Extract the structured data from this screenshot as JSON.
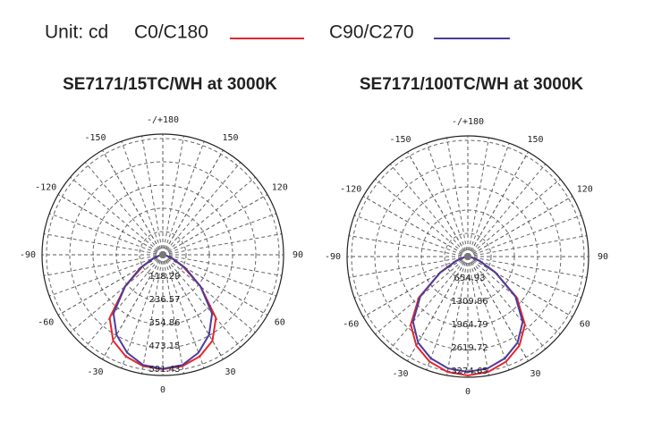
{
  "header": {
    "unit": "Unit: cd",
    "legend": [
      {
        "name": "C0/C180",
        "color": "#e3262f"
      },
      {
        "name": "C90/C270",
        "color": "#4b3c9c"
      }
    ]
  },
  "chart_data": [
    {
      "type": "polar",
      "title": "SE7171/15TC/WH at 3000K",
      "theta": [
        -90,
        -80,
        -70,
        -60,
        -50,
        -40,
        -30,
        -20,
        -10,
        0,
        10,
        20,
        30,
        40,
        50,
        60,
        70,
        80,
        90
      ],
      "rlim": [
        0,
        614
      ],
      "rticks": [
        118.29,
        236.57,
        354.86,
        473.15,
        591.43
      ],
      "thetaticks": [
        0,
        30,
        60,
        90,
        120,
        150,
        {
          "value": 180,
          "label": "-/+180"
        },
        -150,
        -120,
        -90,
        -60,
        -30
      ],
      "series": [
        {
          "color": "#e3262f",
          "values": [
            0,
            15,
            50,
            120,
            250,
            420,
            505,
            550,
            575,
            582,
            575,
            550,
            505,
            420,
            250,
            120,
            50,
            15,
            0
          ]
        },
        {
          "color": "#4b3c9c",
          "values": [
            0,
            15,
            50,
            130,
            250,
            390,
            470,
            530,
            570,
            580,
            570,
            530,
            470,
            390,
            250,
            130,
            50,
            15,
            0
          ]
        }
      ]
    },
    {
      "type": "polar",
      "title": "SE7171/100TC/WH at 3000K",
      "theta": [
        -90,
        -80,
        -70,
        -60,
        -50,
        -40,
        -30,
        -20,
        -10,
        0,
        10,
        20,
        30,
        40,
        50,
        60,
        70,
        80,
        90
      ],
      "rlim": [
        0,
        3400
      ],
      "rticks": [
        654.93,
        1309.86,
        1964.79,
        2619.72,
        3274.65
      ],
      "thetaticks": [
        0,
        30,
        60,
        90,
        120,
        150,
        {
          "value": 180,
          "label": "-/+180"
        },
        -150,
        -120,
        -90,
        -60,
        -30
      ],
      "series": [
        {
          "color": "#e3262f",
          "values": [
            0,
            100,
            350,
            900,
            1800,
            2500,
            2900,
            3150,
            3300,
            3350,
            3300,
            3150,
            2900,
            2500,
            1800,
            900,
            350,
            100,
            0
          ]
        },
        {
          "color": "#4b3c9c",
          "values": [
            0,
            100,
            350,
            900,
            1750,
            2400,
            2800,
            3050,
            3200,
            3250,
            3200,
            3050,
            2800,
            2400,
            1750,
            900,
            350,
            100,
            0
          ]
        }
      ]
    }
  ]
}
